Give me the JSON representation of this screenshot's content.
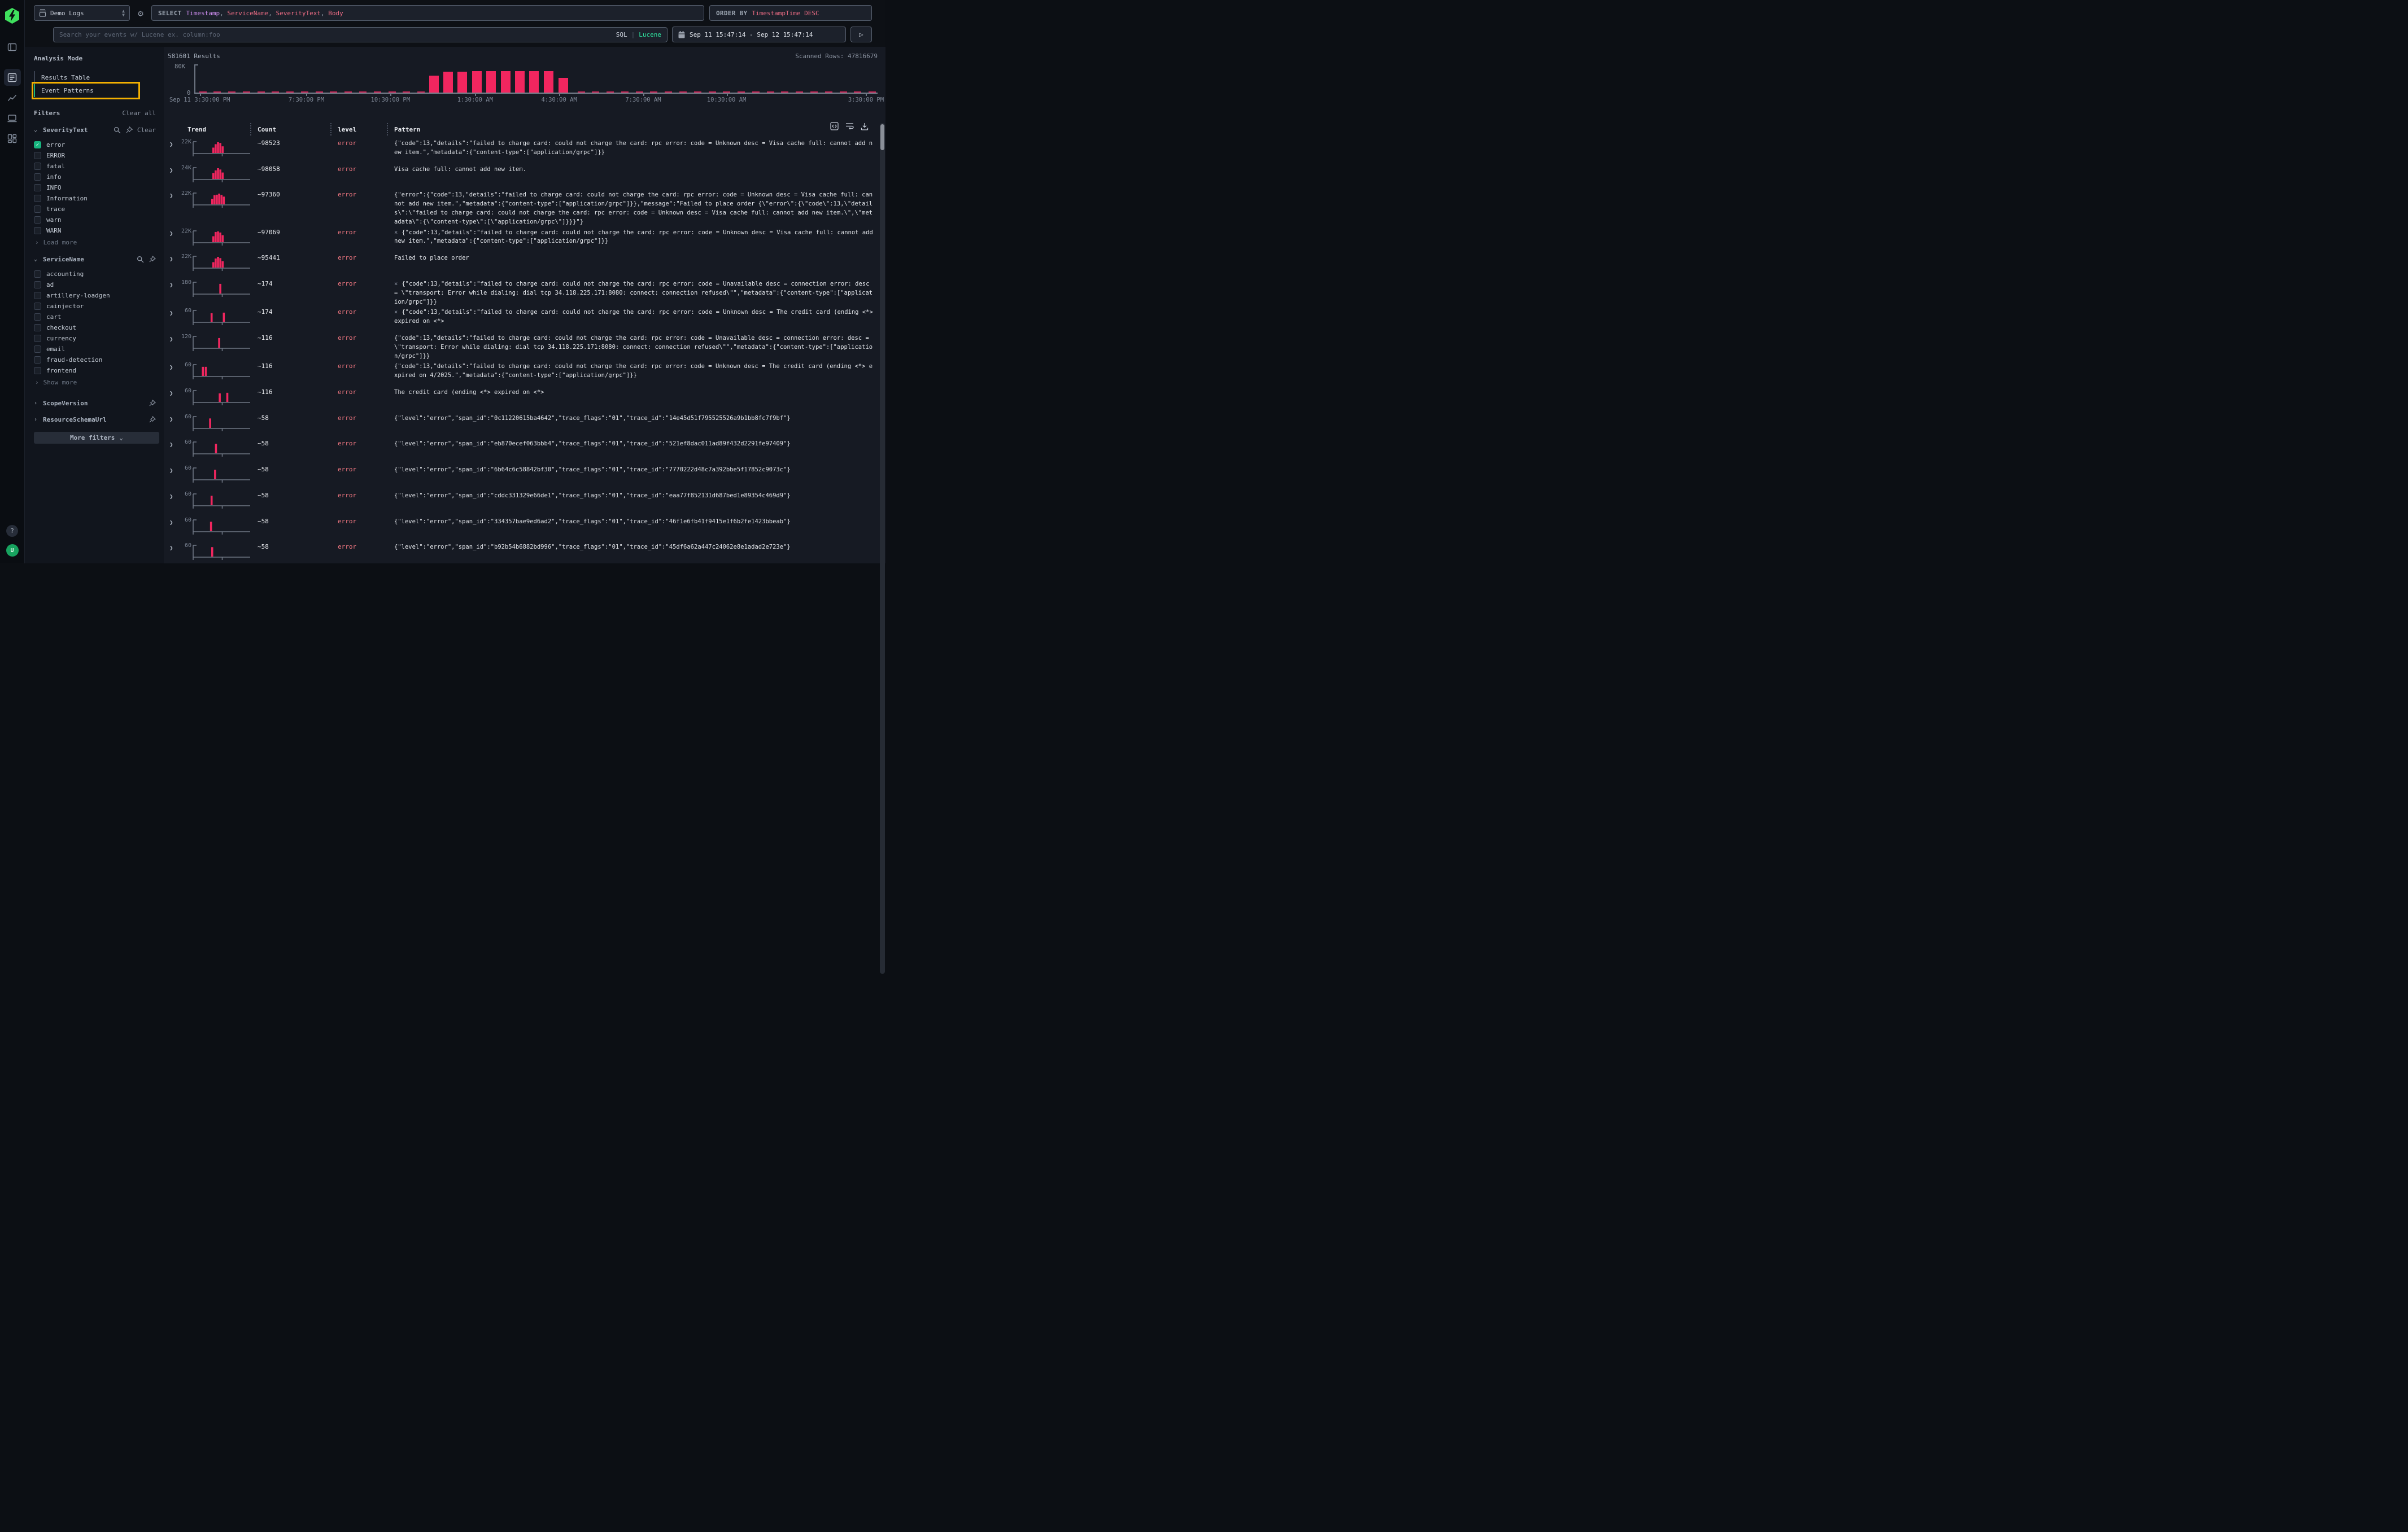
{
  "colors": {
    "bar_pink": "#f1265f",
    "error_text": "#ee7680",
    "accent_teal": "#19b87f",
    "lucene_green": "#2fe3a0",
    "highlight_yellow": "#f3b001",
    "column_purple": "#cf8ef1",
    "column_salmon": "#ee6d85"
  },
  "rail": {
    "logo_icon": "lightning-bolt",
    "nav_icons": [
      "panel-left-icon",
      "logs-list-icon",
      "line-chart-icon",
      "screen-icon",
      "dashboard-grid-icon"
    ],
    "help_label": "?",
    "avatar_label": "U"
  },
  "header": {
    "source_selector": {
      "icon": "database-icon",
      "label": "Demo Logs"
    },
    "select_bar": {
      "keyword": "SELECT",
      "columns": [
        {
          "text": "Timestamp",
          "color": "#cf8ef1"
        },
        {
          "text": "ServiceName",
          "color": "#ee6d85"
        },
        {
          "text": "SeverityText",
          "color": "#ee6d85"
        },
        {
          "text": "Body",
          "color": "#ee6d85"
        }
      ]
    },
    "order_bar": {
      "keyword": "ORDER BY",
      "value": "TimestampTime DESC"
    }
  },
  "searchbar": {
    "placeholder": "Search your events w/ Lucene ex. column:foo",
    "modes": [
      {
        "label": "SQL",
        "active": false
      },
      {
        "label": "Lucene",
        "active": true
      }
    ],
    "time_range": "Sep 11 15:47:14 - Sep 12 15:47:14",
    "run_icon": "play-icon"
  },
  "sidebar": {
    "analysis_mode": {
      "title": "Analysis Mode",
      "options": [
        {
          "label": "Results Table",
          "active": false,
          "highlighted": false
        },
        {
          "label": "Event Patterns",
          "active": true,
          "highlighted": true
        }
      ]
    },
    "filters": {
      "title": "Filters",
      "clear_all": "Clear all",
      "groups": [
        {
          "name": "SeverityText",
          "expanded": true,
          "action_icons": [
            "search-icon",
            "pin-icon"
          ],
          "clear_label": "Clear",
          "options": [
            {
              "label": "error",
              "checked": true
            },
            {
              "label": "ERROR",
              "checked": false
            },
            {
              "label": "fatal",
              "checked": false
            },
            {
              "label": "info",
              "checked": false
            },
            {
              "label": "INFO",
              "checked": false
            },
            {
              "label": "Information",
              "checked": false
            },
            {
              "label": "trace",
              "checked": false
            },
            {
              "label": "warn",
              "checked": false
            },
            {
              "label": "WARN",
              "checked": false
            }
          ],
          "more_label": "Load more"
        },
        {
          "name": "ServiceName",
          "expanded": true,
          "action_icons": [
            "search-icon",
            "pin-icon"
          ],
          "options": [
            {
              "label": "accounting",
              "checked": false
            },
            {
              "label": "ad",
              "checked": false
            },
            {
              "label": "artillery-loadgen",
              "checked": false
            },
            {
              "label": "cainjector",
              "checked": false
            },
            {
              "label": "cart",
              "checked": false
            },
            {
              "label": "checkout",
              "checked": false
            },
            {
              "label": "currency",
              "checked": false
            },
            {
              "label": "email",
              "checked": false
            },
            {
              "label": "fraud-detection",
              "checked": false
            },
            {
              "label": "frontend",
              "checked": false
            }
          ],
          "more_label": "Show more"
        },
        {
          "name": "ScopeVersion",
          "expanded": false,
          "action_icons": [
            "pin-icon"
          ]
        },
        {
          "name": "ResourceSchemaUrl",
          "expanded": false,
          "action_icons": [
            "pin-icon"
          ]
        }
      ],
      "more_filters_label": "More filters"
    }
  },
  "results": {
    "count_label": "581601 Results",
    "scanned_label": "Scanned Rows: 47816679"
  },
  "chart_data": {
    "type": "bar",
    "title": "Results over time histogram",
    "ylabel": "",
    "ylim": [
      0,
      80000
    ],
    "y_axis_ticks": [
      "80K",
      "0"
    ],
    "x_axis_ticks": [
      {
        "f": 0.008,
        "label": "Sep 11 3:30:00 PM"
      },
      {
        "f": 0.164,
        "label": "7:30:00 PM"
      },
      {
        "f": 0.287,
        "label": "10:30:00 PM"
      },
      {
        "f": 0.411,
        "label": "1:30:00 AM"
      },
      {
        "f": 0.534,
        "label": "4:30:00 AM"
      },
      {
        "f": 0.657,
        "label": "7:30:00 AM"
      },
      {
        "f": 0.779,
        "label": "10:30:00 AM"
      },
      {
        "f": 0.983,
        "label": "3:30:00 PM"
      }
    ],
    "tall_bars": [
      {
        "x": 0.35,
        "value": 50000
      },
      {
        "x": 0.371,
        "value": 62000
      },
      {
        "x": 0.392,
        "value": 62000
      },
      {
        "x": 0.413,
        "value": 64000
      },
      {
        "x": 0.434,
        "value": 64000
      },
      {
        "x": 0.455,
        "value": 64000
      },
      {
        "x": 0.476,
        "value": 64000
      },
      {
        "x": 0.497,
        "value": 63000
      },
      {
        "x": 0.518,
        "value": 63000
      },
      {
        "x": 0.54,
        "value": 43000
      }
    ],
    "baseline_bars_value_approx": 500,
    "bar_color": "#f1265f"
  },
  "table": {
    "columns": [
      "Trend",
      "Count",
      "level",
      "Pattern"
    ],
    "toolbar_icons": [
      "code-brackets-icon",
      "wrap-text-icon",
      "download-icon"
    ],
    "rows": [
      {
        "trend_max": "22K",
        "spark": [
          [
            0.33,
            0.5
          ],
          [
            0.37,
            0.82
          ],
          [
            0.41,
            1.0
          ],
          [
            0.45,
            0.93
          ],
          [
            0.49,
            0.62
          ]
        ],
        "count": "~98523",
        "level": "error",
        "prefix": "",
        "pattern": "{\"code\":13,\"details\":\"failed to charge card: could not charge the card: rpc error: code = Unknown desc = Visa cache full: cannot add new item.\",\"metadata\":{\"content-type\":[\"application/grpc\"]}}"
      },
      {
        "trend_max": "24K",
        "spark": [
          [
            0.33,
            0.55
          ],
          [
            0.37,
            0.8
          ],
          [
            0.41,
            1.0
          ],
          [
            0.45,
            0.88
          ],
          [
            0.49,
            0.6
          ]
        ],
        "count": "~98058",
        "level": "error",
        "prefix": "",
        "pattern": "Visa cache full: cannot add new item."
      },
      {
        "trend_max": "22K",
        "spark": [
          [
            0.31,
            0.5
          ],
          [
            0.35,
            0.85
          ],
          [
            0.39,
            0.9
          ],
          [
            0.43,
            1.0
          ],
          [
            0.47,
            0.88
          ],
          [
            0.51,
            0.72
          ]
        ],
        "count": "~97360",
        "level": "error",
        "prefix": "",
        "pattern": "{\"error\":{\"code\":13,\"details\":\"failed to charge card: could not charge the card: rpc error: code = Unknown desc = Visa cache full: cannot add new item.\",\"metadata\":{\"content-type\":[\"application/grpc\"]}},\"message\":\"Failed to place order {\\\"error\\\":{\\\"code\\\":13,\\\"details\\\":\\\"failed to charge card: could not charge the card: rpc error: code = Unknown desc = Visa cache full: cannot add new item.\\\",\\\"metadata\\\":{\\\"content-type\\\":[\\\"application/grpc\\\"]}}}\"}"
      },
      {
        "trend_max": "22K",
        "spark": [
          [
            0.33,
            0.55
          ],
          [
            0.37,
            0.95
          ],
          [
            0.41,
            1.0
          ],
          [
            0.45,
            0.9
          ],
          [
            0.49,
            0.65
          ]
        ],
        "count": "~97069",
        "level": "error",
        "prefix": "×",
        "pattern": "{\"code\":13,\"details\":\"failed to charge card: could not charge the card: rpc error: code = Unknown desc = Visa cache full: cannot add new item.\",\"metadata\":{\"content-type\":[\"application/grpc\"]}}"
      },
      {
        "trend_max": "22K",
        "spark": [
          [
            0.33,
            0.5
          ],
          [
            0.37,
            0.85
          ],
          [
            0.41,
            1.0
          ],
          [
            0.45,
            0.88
          ],
          [
            0.49,
            0.6
          ]
        ],
        "count": "~95441",
        "level": "error",
        "prefix": "",
        "pattern": "Failed to place order"
      },
      {
        "trend_max": "180",
        "spark": [
          [
            0.45,
            0.9
          ]
        ],
        "count": "~174",
        "level": "error",
        "prefix": "×",
        "pattern": "{\"code\":13,\"details\":\"failed to charge card: could not charge the card: rpc error: code = Unavailable desc = connection error: desc = \\\"transport: Error while dialing: dial tcp 34.118.225.171:8080: connect: connection refused\\\"\",\"metadata\":{\"content-type\":[\"application/grpc\"]}}"
      },
      {
        "trend_max": "60",
        "spark": [
          [
            0.3,
            0.8
          ],
          [
            0.51,
            0.85
          ]
        ],
        "count": "~174",
        "level": "error",
        "prefix": "×",
        "pattern": "{\"code\":13,\"details\":\"failed to charge card: could not charge the card: rpc error: code = Unknown desc = The credit card (ending <*> expired on <*>"
      },
      {
        "trend_max": "120",
        "spark": [
          [
            0.43,
            0.9
          ]
        ],
        "count": "~116",
        "level": "error",
        "prefix": "",
        "pattern": "{\"code\":13,\"details\":\"failed to charge card: could not charge the card: rpc error: code = Unavailable desc = connection error: desc = \\\"transport: Error while dialing: dial tcp 34.118.225.171:8080: connect: connection refused\\\"\",\"metadata\":{\"content-type\":[\"application/grpc\"]}}"
      },
      {
        "trend_max": "60",
        "spark": [
          [
            0.15,
            0.85
          ],
          [
            0.2,
            0.85
          ]
        ],
        "count": "~116",
        "level": "error",
        "prefix": "",
        "pattern": "{\"code\":13,\"details\":\"failed to charge card: could not charge the card: rpc error: code = Unknown desc = The credit card (ending <*> expired on 4/2025.\",\"metadata\":{\"content-type\":[\"application/grpc\"]}}"
      },
      {
        "trend_max": "60",
        "spark": [
          [
            0.44,
            0.8
          ],
          [
            0.57,
            0.85
          ]
        ],
        "count": "~116",
        "level": "error",
        "prefix": "",
        "pattern": "The credit card (ending <*> expired on <*>"
      },
      {
        "trend_max": "60",
        "spark": [
          [
            0.275,
            0.88
          ]
        ],
        "count": "~58",
        "level": "error",
        "prefix": "",
        "pattern": "{\"level\":\"error\",\"span_id\":\"0c11220615ba4642\",\"trace_flags\":\"01\",\"trace_id\":\"14e45d51f795525526a9b1bb8fc7f9bf\"}"
      },
      {
        "trend_max": "60",
        "spark": [
          [
            0.375,
            0.88
          ]
        ],
        "count": "~58",
        "level": "error",
        "prefix": "",
        "pattern": "{\"level\":\"error\",\"span_id\":\"eb870ecef063bbb4\",\"trace_flags\":\"01\",\"trace_id\":\"521ef8dac011ad89f432d2291fe97409\"}"
      },
      {
        "trend_max": "60",
        "spark": [
          [
            0.36,
            0.88
          ]
        ],
        "count": "~58",
        "level": "error",
        "prefix": "",
        "pattern": "{\"level\":\"error\",\"span_id\":\"6b64c6c58842bf30\",\"trace_flags\":\"01\",\"trace_id\":\"7770222d48c7a392bbe5f17852c9073c\"}"
      },
      {
        "trend_max": "60",
        "spark": [
          [
            0.3,
            0.88
          ]
        ],
        "count": "~58",
        "level": "error",
        "prefix": "",
        "pattern": "{\"level\":\"error\",\"span_id\":\"cddc331329e66de1\",\"trace_flags\":\"01\",\"trace_id\":\"eaa77f852131d687bed1e89354c469d9\"}"
      },
      {
        "trend_max": "60",
        "spark": [
          [
            0.29,
            0.88
          ]
        ],
        "count": "~58",
        "level": "error",
        "prefix": "",
        "pattern": "{\"level\":\"error\",\"span_id\":\"334357bae9ed6ad2\",\"trace_flags\":\"01\",\"trace_id\":\"46f1e6fb41f9415e1f6b2fe1423bbeab\"}"
      },
      {
        "trend_max": "60",
        "spark": [
          [
            0.31,
            0.88
          ]
        ],
        "count": "~58",
        "level": "error",
        "prefix": "",
        "pattern": "{\"level\":\"error\",\"span_id\":\"b92b54b6882bd996\",\"trace_flags\":\"01\",\"trace_id\":\"45df6a62a447c24062e8e1adad2e723e\"}"
      }
    ]
  }
}
